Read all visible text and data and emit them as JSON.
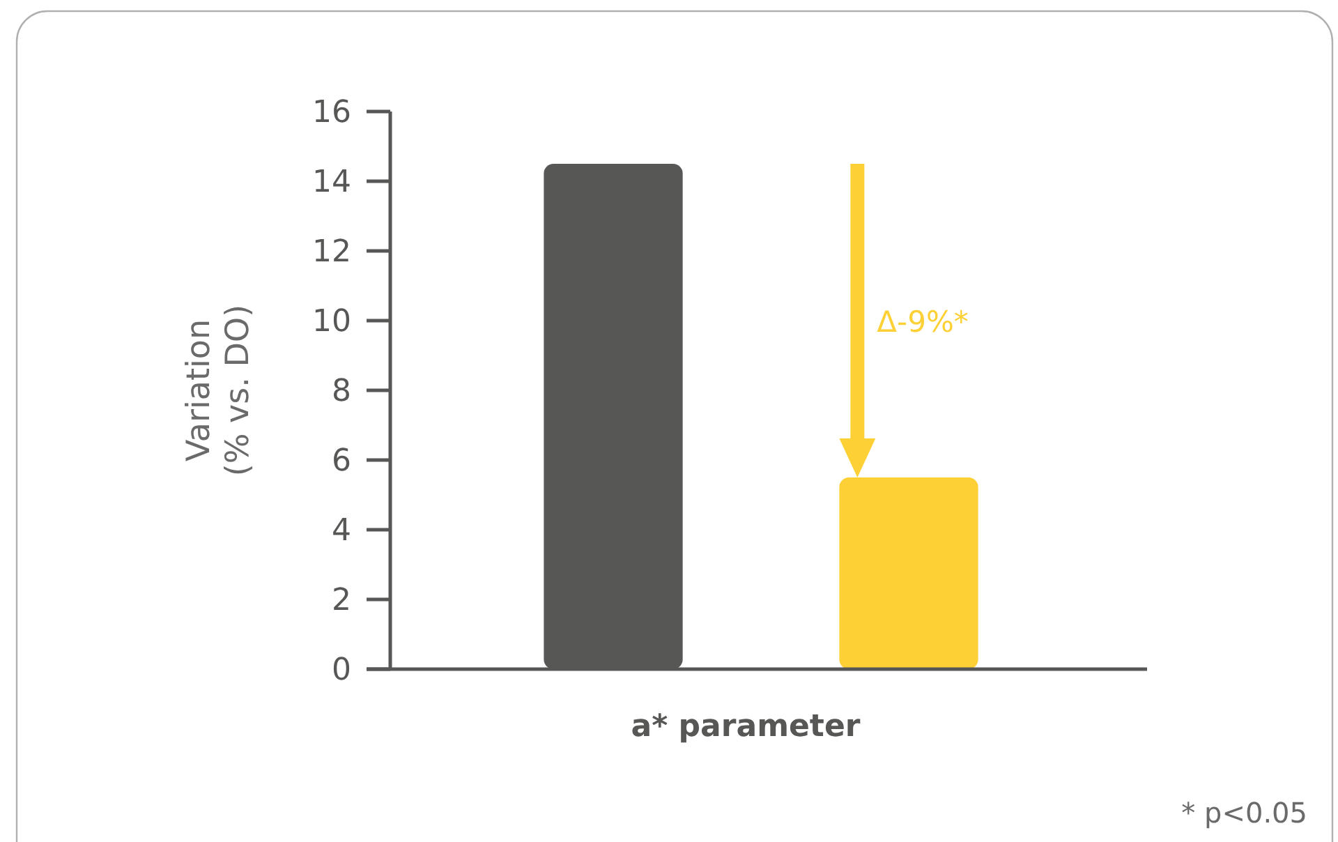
{
  "chart_data": {
    "type": "bar",
    "categories": [
      null,
      null
    ],
    "values": [
      14.5,
      5.5
    ],
    "colors": [
      "#575756",
      "#fdd035"
    ],
    "ylim": [
      0,
      16
    ],
    "yticks": [
      0,
      2,
      4,
      6,
      8,
      10,
      12,
      14,
      16
    ],
    "xlabel": "a* parameter",
    "ylabel": "Variation\n(% vs. DO)",
    "annotations": [
      "Δ-9%*",
      "* p<0.05"
    ]
  }
}
